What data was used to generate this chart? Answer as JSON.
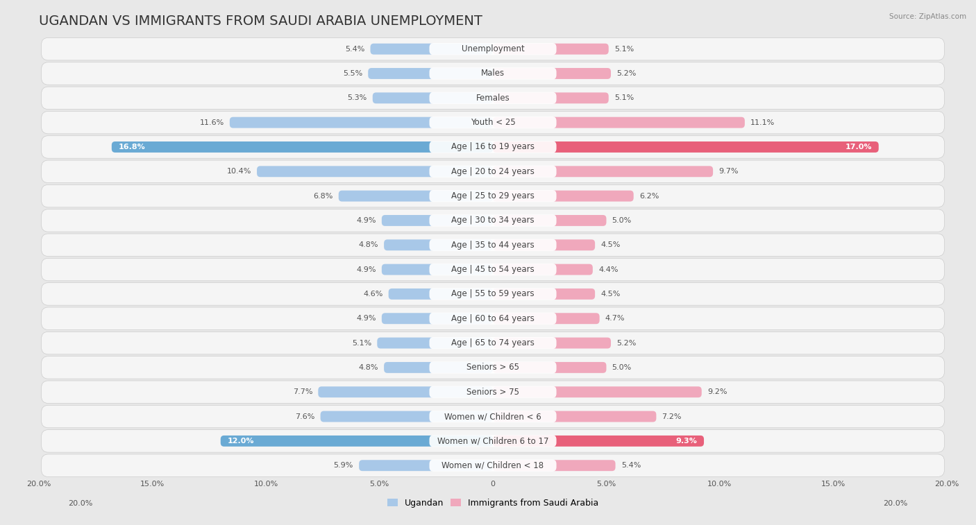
{
  "title": "UGANDAN VS IMMIGRANTS FROM SAUDI ARABIA UNEMPLOYMENT",
  "source": "Source: ZipAtlas.com",
  "categories": [
    "Unemployment",
    "Males",
    "Females",
    "Youth < 25",
    "Age | 16 to 19 years",
    "Age | 20 to 24 years",
    "Age | 25 to 29 years",
    "Age | 30 to 34 years",
    "Age | 35 to 44 years",
    "Age | 45 to 54 years",
    "Age | 55 to 59 years",
    "Age | 60 to 64 years",
    "Age | 65 to 74 years",
    "Seniors > 65",
    "Seniors > 75",
    "Women w/ Children < 6",
    "Women w/ Children 6 to 17",
    "Women w/ Children < 18"
  ],
  "ugandan_values": [
    5.4,
    5.5,
    5.3,
    11.6,
    16.8,
    10.4,
    6.8,
    4.9,
    4.8,
    4.9,
    4.6,
    4.9,
    5.1,
    4.8,
    7.7,
    7.6,
    12.0,
    5.9
  ],
  "saudi_values": [
    5.1,
    5.2,
    5.1,
    11.1,
    17.0,
    9.7,
    6.2,
    5.0,
    4.5,
    4.4,
    4.5,
    4.7,
    5.2,
    5.0,
    9.2,
    7.2,
    9.3,
    5.4
  ],
  "ugandan_color": "#a8c8e8",
  "saudi_color": "#f0a8bc",
  "ugandan_highlight_color": "#6aaad4",
  "saudi_highlight_color": "#e8607a",
  "highlight_rows": [
    4,
    16
  ],
  "axis_limit": 20.0,
  "bg_color": "#e8e8e8",
  "row_bg_color": "#f5f5f5",
  "legend_ugandan": "Ugandan",
  "legend_saudi": "Immigrants from Saudi Arabia",
  "title_fontsize": 14,
  "label_fontsize": 8.5,
  "value_fontsize": 8,
  "tick_fontsize": 8
}
